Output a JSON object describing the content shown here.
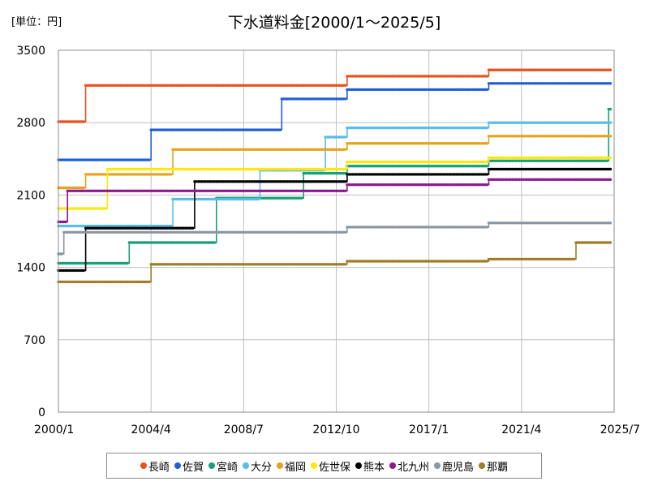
{
  "chart_data": {
    "type": "line",
    "title": "下水道料金[2000/1～2025/5]",
    "unit_label": "[単位：円]",
    "y_ticks": [
      "0",
      "700",
      "1400",
      "2100",
      "2800",
      "3500"
    ],
    "ylim": [
      0,
      3500
    ],
    "x_ticks": [
      "2000/1",
      "2004/4",
      "2008/7",
      "2012/10",
      "2017/1",
      "2021/4",
      "2025/7"
    ],
    "xlim": [
      "2000/1",
      "2025/7"
    ],
    "grid": "vertical and horizontal",
    "legend_position": "bottom",
    "series": [
      {
        "name": "長崎",
        "color": "#e8501c",
        "points": [
          [
            "2000/1",
            2810
          ],
          [
            "2001/4",
            3160
          ],
          [
            "2013/4",
            3250
          ],
          [
            "2019/10",
            3310
          ],
          [
            "2025/5",
            3310
          ]
        ]
      },
      {
        "name": "佐賀",
        "color": "#1f5fd6",
        "points": [
          [
            "2000/1",
            2440
          ],
          [
            "2004/4",
            2730
          ],
          [
            "2010/4",
            3030
          ],
          [
            "2013/4",
            3120
          ],
          [
            "2019/10",
            3180
          ],
          [
            "2025/5",
            3180
          ]
        ]
      },
      {
        "name": "宮崎",
        "color": "#17a078",
        "points": [
          [
            "2000/1",
            1440
          ],
          [
            "2003/4",
            1640
          ],
          [
            "2007/4",
            2070
          ],
          [
            "2011/4",
            2310
          ],
          [
            "2013/4",
            2380
          ],
          [
            "2019/10",
            2430
          ],
          [
            "2025/4",
            2930
          ],
          [
            "2025/5",
            2930
          ]
        ]
      },
      {
        "name": "大分",
        "color": "#59bde8",
        "points": [
          [
            "2000/1",
            1800
          ],
          [
            "2005/4",
            2060
          ],
          [
            "2009/4",
            2340
          ],
          [
            "2012/4",
            2660
          ],
          [
            "2013/4",
            2750
          ],
          [
            "2019/10",
            2800
          ],
          [
            "2025/5",
            2800
          ]
        ]
      },
      {
        "name": "福岡",
        "color": "#e8a21c",
        "points": [
          [
            "2000/1",
            2170
          ],
          [
            "2001/4",
            2300
          ],
          [
            "2005/4",
            2540
          ],
          [
            "2013/4",
            2600
          ],
          [
            "2019/10",
            2670
          ],
          [
            "2025/5",
            2670
          ]
        ]
      },
      {
        "name": "佐世保",
        "color": "#ffe80a",
        "points": [
          [
            "2000/1",
            1970
          ],
          [
            "2002/4",
            2350
          ],
          [
            "2013/4",
            2420
          ],
          [
            "2019/10",
            2460
          ],
          [
            "2025/5",
            2460
          ]
        ]
      },
      {
        "name": "熊本",
        "color": "#000000",
        "points": [
          [
            "2000/1",
            1370
          ],
          [
            "2001/4",
            1780
          ],
          [
            "2006/4",
            2230
          ],
          [
            "2013/4",
            2300
          ],
          [
            "2019/10",
            2350
          ],
          [
            "2025/5",
            2350
          ]
        ]
      },
      {
        "name": "北九州",
        "color": "#8b1a8f",
        "points": [
          [
            "2000/1",
            1840
          ],
          [
            "2000/6",
            2140
          ],
          [
            "2013/4",
            2200
          ],
          [
            "2019/10",
            2250
          ],
          [
            "2025/5",
            2250
          ]
        ]
      },
      {
        "name": "鹿児島",
        "color": "#8a96a4",
        "points": [
          [
            "2000/1",
            1530
          ],
          [
            "2000/4",
            1740
          ],
          [
            "2013/4",
            1790
          ],
          [
            "2019/10",
            1830
          ],
          [
            "2025/5",
            1830
          ]
        ]
      },
      {
        "name": "那覇",
        "color": "#a07c24",
        "points": [
          [
            "2000/1",
            1260
          ],
          [
            "2004/4",
            1430
          ],
          [
            "2013/4",
            1460
          ],
          [
            "2019/10",
            1480
          ],
          [
            "2023/10",
            1640
          ],
          [
            "2025/5",
            1640
          ]
        ]
      }
    ]
  }
}
